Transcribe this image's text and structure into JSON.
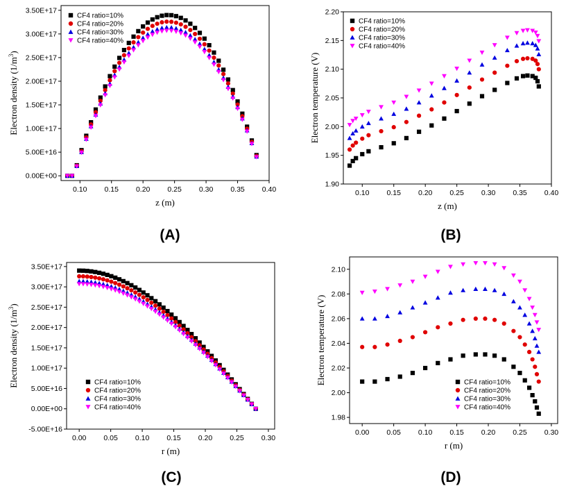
{
  "panels": [
    "(A)",
    "(B)",
    "(C)",
    "(D)"
  ],
  "marker_colors": {
    "s1": "#000000",
    "s2": "#e00000",
    "s3": "#0000e0",
    "s4": "#ff00ff"
  },
  "chart_data": [
    {
      "type": "scatter",
      "panel": "(A)",
      "title": "",
      "xlabel": "z (m)",
      "ylabel": "Electron density (1/m3)",
      "ylabel_main": "Electron density (1/m",
      "ylabel_sup": "3",
      "ylabel_close": ")",
      "xlim": [
        0.07,
        0.4
      ],
      "ylim": [
        -1e+16,
        3.6e+17
      ],
      "xticks": [
        0.1,
        0.15,
        0.2,
        0.25,
        0.3,
        0.35,
        0.4
      ],
      "xtick_labels": [
        "0.10",
        "0.15",
        "0.20",
        "0.25",
        "0.30",
        "0.35",
        "0.40"
      ],
      "yticks": [
        0,
        5e+16,
        1e+17,
        1.5e+17,
        2e+17,
        2.5e+17,
        3e+17,
        3.5e+17
      ],
      "ytick_labels": [
        "0.00E+00",
        "5.00E+16",
        "1.00E+17",
        "1.50E+17",
        "2.00E+17",
        "2.50E+17",
        "3.00E+17",
        "3.50E+17"
      ],
      "legend": "top-left",
      "x_range": [
        0.08,
        0.38
      ],
      "n_points": 41,
      "series": [
        {
          "name": "CF4 ratio=10%",
          "marker": "square",
          "peak": 3.4e+17,
          "center": 0.24
        },
        {
          "name": "CF4 ratio=20%",
          "marker": "circle",
          "peak": 3.26e+17,
          "center": 0.24
        },
        {
          "name": "CF4 ratio=30%",
          "marker": "triangle-up",
          "peak": 3.14e+17,
          "center": 0.24
        },
        {
          "name": "CF4 ratio=40%",
          "marker": "triangle-down",
          "peak": 3.07e+17,
          "center": 0.24
        }
      ]
    },
    {
      "type": "scatter",
      "panel": "(B)",
      "title": "",
      "xlabel": "z (m)",
      "ylabel": "Electron temperature (V)",
      "xlim": [
        0.07,
        0.4
      ],
      "ylim": [
        1.9,
        2.2
      ],
      "xticks": [
        0.1,
        0.15,
        0.2,
        0.25,
        0.3,
        0.35,
        0.4
      ],
      "xtick_labels": [
        "0.10",
        "0.15",
        "0.20",
        "0.25",
        "0.30",
        "0.35",
        "0.40"
      ],
      "yticks": [
        1.9,
        1.95,
        2.0,
        2.05,
        2.1,
        2.15,
        2.2
      ],
      "ytick_labels": [
        "1.90",
        "1.95",
        "2.00",
        "2.05",
        "2.10",
        "2.15",
        "2.20"
      ],
      "legend": "top-left",
      "x": [
        0.08,
        0.085,
        0.09,
        0.1,
        0.11,
        0.13,
        0.15,
        0.17,
        0.19,
        0.21,
        0.23,
        0.25,
        0.27,
        0.29,
        0.31,
        0.33,
        0.345,
        0.355,
        0.362,
        0.37,
        0.375,
        0.378,
        0.38
      ],
      "series": [
        {
          "name": "CF4 ratio=10%",
          "marker": "square",
          "values": [
            1.932,
            1.94,
            1.945,
            1.952,
            1.957,
            1.964,
            1.971,
            1.98,
            1.991,
            2.002,
            2.014,
            2.027,
            2.04,
            2.053,
            2.064,
            2.076,
            2.084,
            2.088,
            2.089,
            2.088,
            2.085,
            2.079,
            2.07
          ]
        },
        {
          "name": "CF4 ratio=20%",
          "marker": "circle",
          "values": [
            1.96,
            1.967,
            1.972,
            1.979,
            1.985,
            1.992,
            1.999,
            2.008,
            2.019,
            2.03,
            2.042,
            2.055,
            2.068,
            2.082,
            2.094,
            2.106,
            2.114,
            2.118,
            2.119,
            2.118,
            2.115,
            2.109,
            2.1
          ]
        },
        {
          "name": "CF4 ratio=30%",
          "marker": "triangle-up",
          "values": [
            1.98,
            1.988,
            1.993,
            2.0,
            2.006,
            2.014,
            2.022,
            2.031,
            2.042,
            2.054,
            2.067,
            2.08,
            2.094,
            2.108,
            2.12,
            2.133,
            2.141,
            2.145,
            2.146,
            2.145,
            2.142,
            2.136,
            2.126
          ]
        },
        {
          "name": "CF4 ratio=40%",
          "marker": "triangle-down",
          "values": [
            2.003,
            2.01,
            2.014,
            2.02,
            2.026,
            2.034,
            2.042,
            2.052,
            2.063,
            2.075,
            2.088,
            2.101,
            2.115,
            2.129,
            2.142,
            2.155,
            2.163,
            2.167,
            2.168,
            2.167,
            2.164,
            2.158,
            2.149
          ]
        }
      ]
    },
    {
      "type": "scatter",
      "panel": "(C)",
      "title": "",
      "xlabel": "r (m)",
      "ylabel": "Electron density (1/m3)",
      "ylabel_main": "Electron density (1/m",
      "ylabel_sup": "3",
      "ylabel_close": ")",
      "xlim": [
        -0.02,
        0.31
      ],
      "ylim": [
        -5e+16,
        3.6e+17
      ],
      "xticks": [
        0.0,
        0.05,
        0.1,
        0.15,
        0.2,
        0.25,
        0.3
      ],
      "xtick_labels": [
        "0.00",
        "0.05",
        "0.10",
        "0.15",
        "0.20",
        "0.25",
        "0.30"
      ],
      "yticks": [
        -5e+16,
        0,
        5e+16,
        1e+17,
        1.5e+17,
        2e+17,
        2.5e+17,
        3e+17,
        3.5e+17
      ],
      "ytick_labels": [
        "-5.00E+16",
        "0.00E+00",
        "5.00E+16",
        "1.00E+17",
        "1.50E+17",
        "2.00E+17",
        "2.50E+17",
        "3.00E+17",
        "3.50E+17"
      ],
      "legend": "bottom-left",
      "x_range": [
        0.0,
        0.28
      ],
      "n_points": 45,
      "series": [
        {
          "name": "CF4 ratio=10%",
          "marker": "square",
          "value_at_0": 3.4e+17
        },
        {
          "name": "CF4 ratio=20%",
          "marker": "circle",
          "value_at_0": 3.26e+17
        },
        {
          "name": "CF4 ratio=30%",
          "marker": "triangle-up",
          "value_at_0": 3.14e+17
        },
        {
          "name": "CF4 ratio=40%",
          "marker": "triangle-down",
          "value_at_0": 3.07e+17
        }
      ]
    },
    {
      "type": "scatter",
      "panel": "(D)",
      "title": "",
      "xlabel": "r (m)",
      "ylabel": "Electron temperature (V)",
      "xlim": [
        -0.02,
        0.31
      ],
      "ylim": [
        1.975,
        2.11
      ],
      "xticks": [
        0.0,
        0.05,
        0.1,
        0.15,
        0.2,
        0.25,
        0.3
      ],
      "xtick_labels": [
        "0.00",
        "0.05",
        "0.10",
        "0.15",
        "0.20",
        "0.25",
        "0.30"
      ],
      "yticks": [
        1.98,
        2.0,
        2.02,
        2.04,
        2.06,
        2.08,
        2.1
      ],
      "ytick_labels": [
        "1.98",
        "2.00",
        "2.02",
        "2.04",
        "2.06",
        "2.08",
        "2.10"
      ],
      "legend": "bottom-right",
      "x": [
        0.0,
        0.02,
        0.04,
        0.06,
        0.08,
        0.1,
        0.12,
        0.14,
        0.16,
        0.18,
        0.195,
        0.21,
        0.225,
        0.24,
        0.25,
        0.258,
        0.265,
        0.27,
        0.274,
        0.277,
        0.28
      ],
      "series": [
        {
          "name": "CF4 ratio=10%",
          "marker": "square",
          "values": [
            2.009,
            2.009,
            2.011,
            2.013,
            2.016,
            2.02,
            2.024,
            2.027,
            2.03,
            2.031,
            2.031,
            2.03,
            2.027,
            2.021,
            2.016,
            2.01,
            2.004,
            1.998,
            1.993,
            1.988,
            1.983
          ]
        },
        {
          "name": "CF4 ratio=20%",
          "marker": "circle",
          "values": [
            2.037,
            2.037,
            2.039,
            2.042,
            2.045,
            2.049,
            2.053,
            2.056,
            2.059,
            2.06,
            2.06,
            2.059,
            2.056,
            2.05,
            2.045,
            2.039,
            2.033,
            2.027,
            2.021,
            2.015,
            2.009
          ]
        },
        {
          "name": "CF4 ratio=30%",
          "marker": "triangle-up",
          "values": [
            2.06,
            2.06,
            2.062,
            2.065,
            2.069,
            2.073,
            2.077,
            2.081,
            2.083,
            2.084,
            2.084,
            2.083,
            2.08,
            2.074,
            2.069,
            2.063,
            2.056,
            2.05,
            2.044,
            2.038,
            2.033
          ]
        },
        {
          "name": "CF4 ratio=40%",
          "marker": "triangle-down",
          "values": [
            2.081,
            2.082,
            2.084,
            2.087,
            2.09,
            2.094,
            2.098,
            2.102,
            2.104,
            2.105,
            2.105,
            2.104,
            2.101,
            2.095,
            2.09,
            2.083,
            2.076,
            2.069,
            2.063,
            2.057,
            2.051
          ]
        }
      ]
    }
  ]
}
